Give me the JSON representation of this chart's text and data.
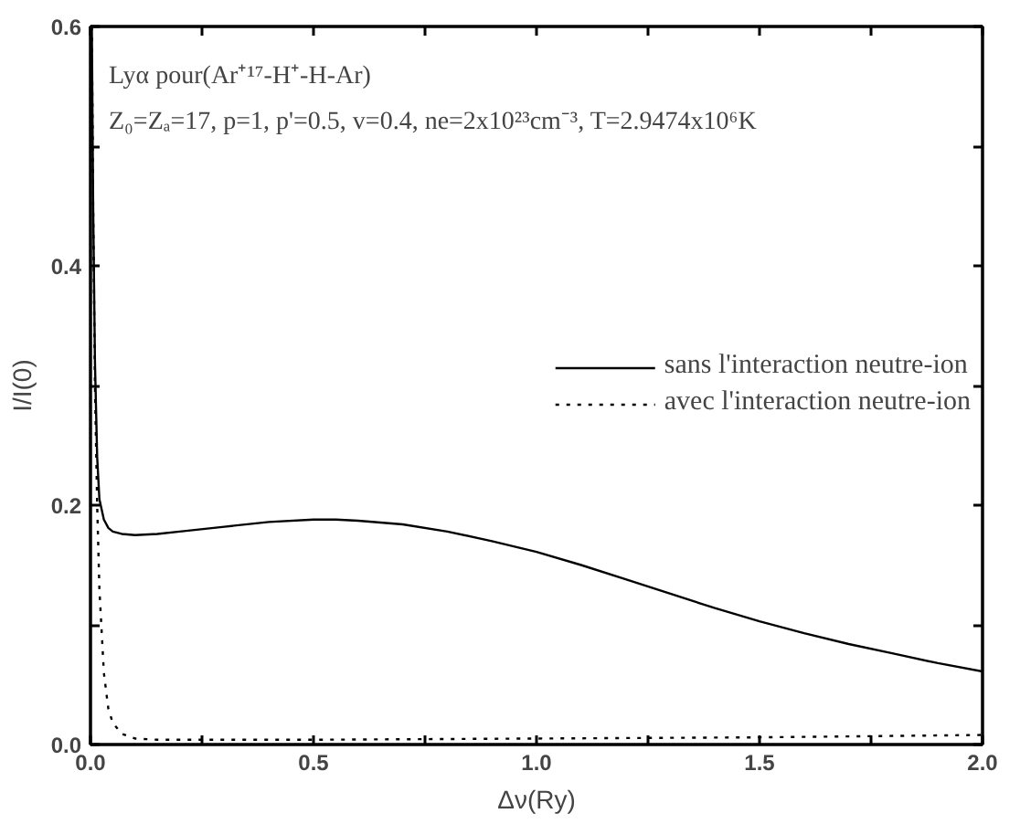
{
  "chart_data": {
    "type": "line",
    "xlabel": "Δν(Ry)",
    "ylabel": "I/I(0)",
    "annotations": [
      "Lyα pour(Ar⁺¹⁷-H⁺-H-Ar)",
      "Z₀=Zₐ=17, p=1, p'=0.5, v=0.4, ne=2x10²³cm⁻³, T=2.9474x10⁶K"
    ],
    "xlim": [
      0,
      2
    ],
    "ylim": [
      0,
      0.6
    ],
    "xticks": [
      {
        "value": 0,
        "label": "0.0"
      },
      {
        "value": 0.25,
        "label": null
      },
      {
        "value": 0.5,
        "label": "0.5"
      },
      {
        "value": 0.75,
        "label": null
      },
      {
        "value": 1,
        "label": "1.0"
      },
      {
        "value": 1.25,
        "label": null
      },
      {
        "value": 1.5,
        "label": "1.5"
      },
      {
        "value": 1.75,
        "label": null
      },
      {
        "value": 2,
        "label": "2.0"
      }
    ],
    "yticks": [
      {
        "value": 0,
        "label": "0.0"
      },
      {
        "value": 0.1,
        "label": null
      },
      {
        "value": 0.2,
        "label": "0.2"
      },
      {
        "value": 0.3,
        "label": null
      },
      {
        "value": 0.4,
        "label": "0.4"
      },
      {
        "value": 0.5,
        "label": null
      },
      {
        "value": 0.6,
        "label": "0.6"
      }
    ],
    "grid": false,
    "legend": "right",
    "marker": "none",
    "series": [
      {
        "name": "sans l'interaction neutre-ion",
        "color": "#000000",
        "line_style": "solid",
        "x": [
          0.003,
          0.006,
          0.01,
          0.015,
          0.02,
          0.03,
          0.04,
          0.05,
          0.07,
          0.1,
          0.15,
          0.2,
          0.3,
          0.4,
          0.5,
          0.55,
          0.6,
          0.7,
          0.8,
          0.9,
          1.0,
          1.1,
          1.2,
          1.3,
          1.4,
          1.5,
          1.6,
          1.7,
          1.8,
          1.9,
          2.0
        ],
        "values": [
          0.6,
          0.45,
          0.32,
          0.24,
          0.205,
          0.188,
          0.181,
          0.178,
          0.176,
          0.175,
          0.176,
          0.178,
          0.182,
          0.186,
          0.188,
          0.188,
          0.187,
          0.184,
          0.178,
          0.17,
          0.161,
          0.15,
          0.138,
          0.126,
          0.114,
          0.103,
          0.093,
          0.084,
          0.076,
          0.068,
          0.061
        ]
      },
      {
        "name": "avec l'interaction neutre-ion",
        "color": "#000000",
        "line_style": "dotted",
        "x": [
          0.003,
          0.006,
          0.01,
          0.015,
          0.02,
          0.03,
          0.04,
          0.05,
          0.07,
          0.1,
          0.15,
          0.3,
          0.5,
          1.0,
          1.5,
          2.0
        ],
        "values": [
          0.6,
          0.45,
          0.3,
          0.2,
          0.13,
          0.06,
          0.03,
          0.018,
          0.009,
          0.005,
          0.004,
          0.004,
          0.004,
          0.005,
          0.006,
          0.008
        ]
      }
    ]
  }
}
